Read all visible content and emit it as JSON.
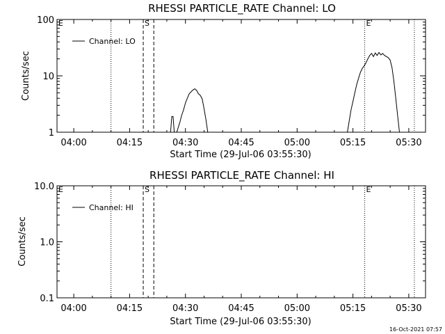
{
  "footer": {
    "timestamp": "16-Oct-2021 07:57"
  },
  "chart_data": [
    {
      "type": "line",
      "title": "RHESSI PARTICLE_RATE Channel: LO",
      "xlabel": "Start Time (29-Jul-06 03:55:30)",
      "ylabel": "Counts/sec",
      "yscale": "log",
      "xlim": [
        "03:55:30",
        "05:34:30"
      ],
      "ylim": [
        1,
        100
      ],
      "x_ticks": [
        "04:00",
        "04:15",
        "04:30",
        "04:45",
        "05:00",
        "05:15",
        "05:30"
      ],
      "y_ticks": [
        "1",
        "10",
        "100"
      ],
      "legend": {
        "position": "top-left",
        "entries": [
          "Channel: LO"
        ]
      },
      "markers": [
        {
          "label": "E",
          "time": "03:55:30",
          "style": "none"
        },
        {
          "label": "",
          "time": "04:10:00",
          "style": "dotted"
        },
        {
          "label": "S",
          "time": "04:18:40",
          "style": "dashed"
        },
        {
          "label": "",
          "time": "04:21:30",
          "style": "dashed"
        },
        {
          "label": "E",
          "time": "05:18:10",
          "style": "dotted"
        },
        {
          "label": "",
          "time": "05:31:30",
          "style": "dotted"
        }
      ],
      "series": [
        {
          "name": "Channel: LO",
          "segments": [
            [
              [
                "04:26:00",
                1.0
              ],
              [
                "04:26:20",
                1.9
              ],
              [
                "04:26:40",
                1.9
              ],
              [
                "04:27:00",
                1.0
              ]
            ],
            [
              [
                "04:27:40",
                1.0
              ],
              [
                "04:28:30",
                1.5
              ],
              [
                "04:29:00",
                2.0
              ],
              [
                "04:29:30",
                2.5
              ],
              [
                "04:30:00",
                3.3
              ],
              [
                "04:30:30",
                4.0
              ],
              [
                "04:31:00",
                4.8
              ],
              [
                "04:31:30",
                5.2
              ],
              [
                "04:32:00",
                5.6
              ],
              [
                "04:32:30",
                5.9
              ],
              [
                "04:33:00",
                5.5
              ],
              [
                "04:33:30",
                4.8
              ],
              [
                "04:34:00",
                4.5
              ],
              [
                "04:34:30",
                3.9
              ],
              [
                "04:35:00",
                2.6
              ],
              [
                "04:35:30",
                1.7
              ],
              [
                "04:36:00",
                1.0
              ]
            ],
            [
              [
                "05:13:30",
                1.0
              ],
              [
                "05:14:00",
                1.6
              ],
              [
                "05:14:30",
                2.5
              ],
              [
                "05:15:00",
                3.5
              ],
              [
                "05:15:30",
                5.0
              ],
              [
                "05:16:00",
                7.0
              ],
              [
                "05:16:30",
                9.0
              ],
              [
                "05:17:00",
                11.5
              ],
              [
                "05:17:30",
                13.5
              ],
              [
                "05:18:00",
                15.0
              ],
              [
                "05:18:30",
                17.0
              ],
              [
                "05:19:00",
                20.0
              ],
              [
                "05:19:30",
                23.0
              ],
              [
                "05:20:00",
                25.0
              ],
              [
                "05:20:30",
                22.0
              ],
              [
                "05:21:00",
                25.5
              ],
              [
                "05:21:30",
                23.0
              ],
              [
                "05:22:00",
                26.0
              ],
              [
                "05:22:30",
                23.5
              ],
              [
                "05:23:00",
                25.0
              ],
              [
                "05:23:30",
                23.0
              ],
              [
                "05:24:00",
                22.0
              ],
              [
                "05:24:30",
                21.0
              ],
              [
                "05:25:00",
                19.0
              ],
              [
                "05:25:30",
                14.0
              ],
              [
                "05:26:00",
                8.0
              ],
              [
                "05:26:30",
                4.0
              ],
              [
                "05:27:00",
                2.0
              ],
              [
                "05:27:30",
                1.0
              ]
            ]
          ]
        }
      ]
    },
    {
      "type": "line",
      "title": "RHESSI PARTICLE_RATE Channel: HI",
      "xlabel": "Start Time (29-Jul-06 03:55:30)",
      "ylabel": "Counts/sec",
      "yscale": "log",
      "xlim": [
        "03:55:30",
        "05:34:30"
      ],
      "ylim": [
        0.1,
        10.0
      ],
      "x_ticks": [
        "04:00",
        "04:15",
        "04:30",
        "04:45",
        "05:00",
        "05:15",
        "05:30"
      ],
      "y_ticks": [
        "0.1",
        "1.0",
        "10.0"
      ],
      "legend": {
        "position": "top-left",
        "entries": [
          "Channel: HI"
        ]
      },
      "markers": [
        {
          "label": "E",
          "time": "03:55:30",
          "style": "none"
        },
        {
          "label": "",
          "time": "04:10:00",
          "style": "dotted"
        },
        {
          "label": "S",
          "time": "04:18:40",
          "style": "dashed"
        },
        {
          "label": "",
          "time": "04:21:30",
          "style": "dashed"
        },
        {
          "label": "E",
          "time": "05:18:10",
          "style": "dotted"
        },
        {
          "label": "",
          "time": "05:31:30",
          "style": "dotted"
        }
      ],
      "series": [
        {
          "name": "Channel: HI",
          "segments": []
        }
      ]
    }
  ]
}
